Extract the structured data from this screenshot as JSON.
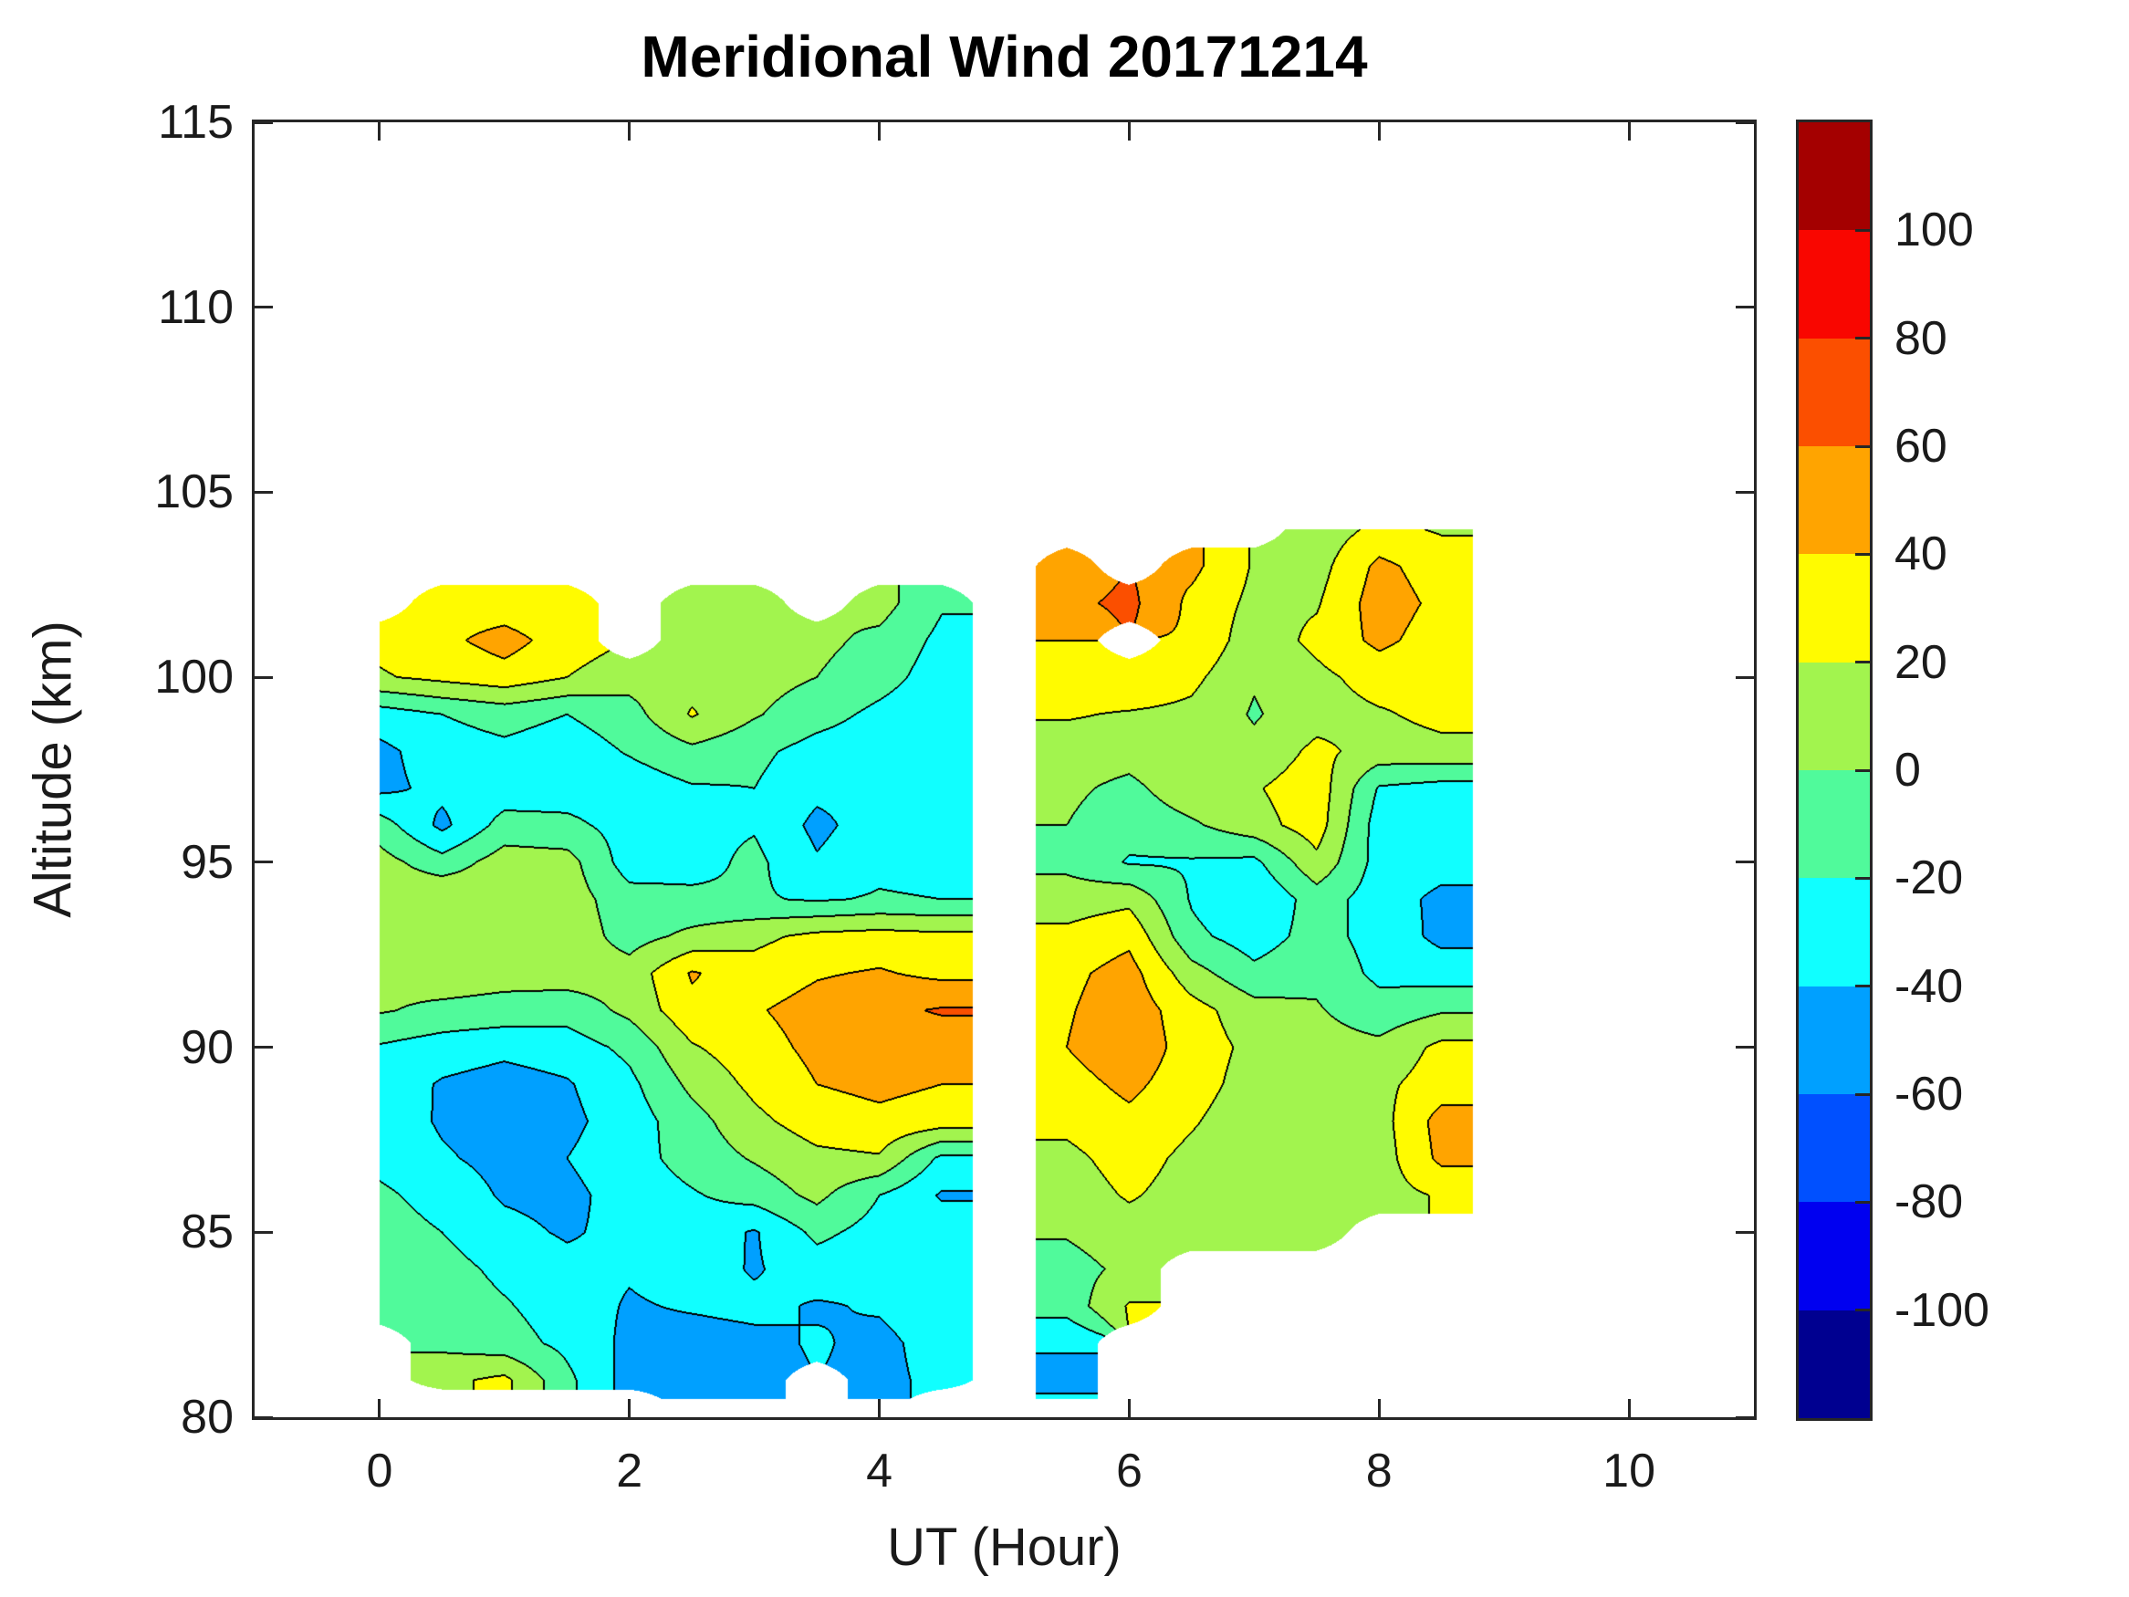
{
  "title": "Meridional Wind 20171214",
  "chart_data": {
    "type": "filled-contour",
    "title": "Meridional Wind 20171214",
    "xlabel": "UT (Hour)",
    "ylabel": "Altitude (km)",
    "xlim": [
      -1,
      11
    ],
    "ylim": [
      80,
      115
    ],
    "grid": false,
    "x_tick_values": [
      0,
      2,
      4,
      6,
      8,
      10
    ],
    "x_tick_labels": [
      "0",
      "2",
      "4",
      "6",
      "8",
      "10"
    ],
    "y_tick_values": [
      80,
      85,
      90,
      95,
      100,
      105,
      110,
      115
    ],
    "y_tick_labels": [
      "80",
      "85",
      "90",
      "95",
      "100",
      "105",
      "110",
      "115"
    ],
    "colorbar": {
      "range": [
        -120,
        120
      ],
      "level_step": 20,
      "tick_values": [
        100,
        80,
        60,
        40,
        20,
        0,
        -20,
        -40,
        -60,
        -80,
        -100
      ],
      "tick_labels": [
        "100",
        "80",
        "60",
        "40",
        "20",
        "0",
        "-20",
        "-40",
        "-60",
        "-80",
        "-100"
      ],
      "band_colors_low_to_high": [
        "#000090",
        "#0000F0",
        "#0050FF",
        "#00A0FF",
        "#10FFFF",
        "#50FA9B",
        "#A2F44E",
        "#FFFB00",
        "#FFA400",
        "#FB4F00",
        "#F90600",
        "#A40000"
      ]
    },
    "contour_line_color": "#000000",
    "x": [
      0,
      0.5,
      1,
      1.5,
      2,
      2.5,
      3,
      3.5,
      4,
      4.5,
      5,
      5.5,
      6,
      6.5,
      7,
      7.5,
      8,
      8.5,
      8.75
    ],
    "altitude": [
      104,
      103,
      102,
      101,
      100,
      99,
      98,
      97,
      96,
      95,
      94,
      93,
      92,
      91,
      90,
      89,
      88,
      87,
      86,
      85,
      84,
      83,
      82,
      81,
      80.5
    ],
    "values": [
      [
        null,
        null,
        null,
        null,
        null,
        null,
        null,
        null,
        null,
        null,
        null,
        null,
        null,
        null,
        null,
        8,
        25,
        18,
        18
      ],
      [
        null,
        null,
        null,
        null,
        null,
        null,
        null,
        null,
        null,
        null,
        null,
        45,
        null,
        45,
        18,
        12,
        45,
        30,
        30
      ],
      [
        null,
        30,
        28,
        22,
        null,
        15,
        10,
        null,
        8,
        -18,
        null,
        55,
        65,
        35,
        15,
        18,
        50,
        35,
        35
      ],
      [
        25,
        35,
        48,
        30,
        null,
        18,
        12,
        5,
        -5,
        -25,
        null,
        40,
        null,
        38,
        8,
        25,
        45,
        30,
        30
      ],
      [
        18,
        25,
        32,
        20,
        8,
        12,
        8,
        0,
        -12,
        -30,
        null,
        30,
        38,
        25,
        2,
        15,
        28,
        22,
        22
      ],
      [
        -30,
        -20,
        -12,
        -20,
        -8,
        22,
        2,
        -12,
        -25,
        -35,
        null,
        22,
        18,
        15,
        -2,
        12,
        18,
        25,
        25
      ],
      [
        -45,
        -30,
        -25,
        -32,
        -18,
        -5,
        -15,
        -28,
        -32,
        -38,
        null,
        10,
        8,
        18,
        5,
        25,
        12,
        15,
        15
      ],
      [
        -45,
        -35,
        -32,
        -30,
        -32,
        -22,
        -20,
        -35,
        -35,
        -40,
        null,
        4,
        -5,
        12,
        18,
        32,
        -22,
        -28,
        -28
      ],
      [
        -10,
        -45,
        -12,
        -15,
        -28,
        -25,
        -22,
        -45,
        -30,
        -35,
        null,
        0,
        -12,
        -3,
        12,
        30,
        -30,
        -35,
        -35
      ],
      [
        8,
        -12,
        10,
        8,
        -30,
        -28,
        -15,
        -38,
        -25,
        -28,
        null,
        -5,
        -22,
        -22,
        -25,
        15,
        -28,
        -32,
        -32
      ],
      [
        12,
        20,
        12,
        10,
        -12,
        -15,
        -18,
        -22,
        -18,
        -20,
        null,
        10,
        15,
        -22,
        -40,
        -10,
        -30,
        -45,
        -45
      ],
      [
        12,
        8,
        10,
        12,
        -8,
        5,
        15,
        25,
        28,
        25,
        null,
        25,
        35,
        -15,
        -30,
        -12,
        -28,
        -45,
        -45
      ],
      [
        5,
        12,
        8,
        10,
        8,
        42,
        28,
        38,
        42,
        35,
        null,
        35,
        48,
        8,
        -15,
        -5,
        -25,
        -30,
        -30
      ],
      [
        2,
        -5,
        -8,
        -12,
        5,
        35,
        38,
        48,
        55,
        62,
        null,
        38,
        52,
        28,
        8,
        2,
        -12,
        -2,
        -2
      ],
      [
        -22,
        -30,
        -35,
        -30,
        -15,
        18,
        32,
        45,
        50,
        48,
        null,
        40,
        55,
        30,
        15,
        8,
        5,
        25,
        25
      ],
      [
        -28,
        -42,
        -48,
        -42,
        -25,
        5,
        25,
        40,
        45,
        40,
        null,
        32,
        45,
        28,
        12,
        8,
        15,
        30,
        30
      ],
      [
        -30,
        -42,
        -48,
        -45,
        -30,
        -8,
        15,
        30,
        35,
        30,
        null,
        25,
        35,
        22,
        8,
        5,
        12,
        48,
        48
      ],
      [
        -28,
        -38,
        -45,
        -40,
        -28,
        -12,
        2,
        15,
        18,
        -25,
        null,
        15,
        28,
        15,
        10,
        8,
        10,
        45,
        45
      ],
      [
        -15,
        -30,
        -42,
        -45,
        -32,
        -22,
        -12,
        5,
        -20,
        -42,
        null,
        10,
        22,
        12,
        8,
        5,
        12,
        22,
        22
      ],
      [
        -8,
        -20,
        -35,
        -42,
        -35,
        -28,
        -42,
        -15,
        -28,
        -30,
        null,
        2,
        12,
        8,
        10,
        3,
        null,
        null,
        null
      ],
      [
        -5,
        -12,
        -25,
        -35,
        -38,
        -30,
        -42,
        -30,
        -35,
        -25,
        null,
        -8,
        5,
        null,
        null,
        null,
        null,
        null,
        null
      ],
      [
        -2,
        -8,
        -18,
        -30,
        -42,
        -38,
        -35,
        -42,
        -38,
        -28,
        null,
        -12,
        22,
        null,
        null,
        null,
        null,
        null,
        null
      ],
      [
        null,
        -5,
        -12,
        -25,
        -45,
        -48,
        -45,
        -38,
        -45,
        -32,
        null,
        -38,
        null,
        null,
        null,
        null,
        null,
        null,
        null
      ],
      [
        null,
        15,
        25,
        -15,
        -48,
        -45,
        -48,
        null,
        -45,
        -35,
        null,
        -45,
        null,
        null,
        null,
        null,
        null,
        null,
        null
      ],
      [
        null,
        null,
        null,
        null,
        null,
        -40,
        -40,
        null,
        -40,
        null,
        null,
        -38,
        null,
        null,
        null,
        null,
        null,
        null,
        null
      ]
    ]
  }
}
